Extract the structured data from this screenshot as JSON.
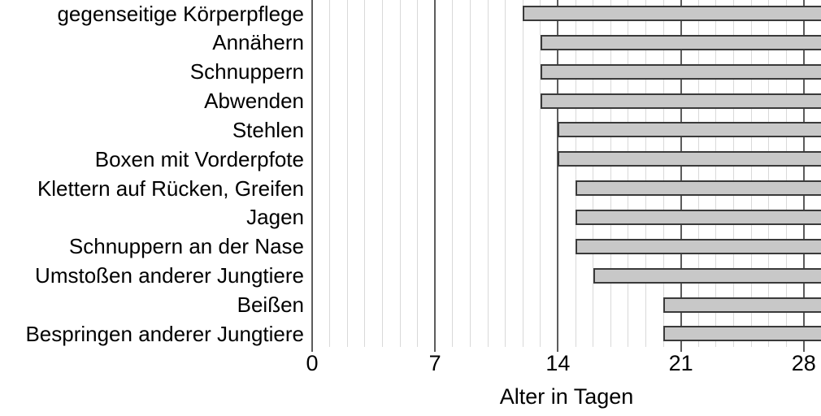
{
  "chart_data": {
    "type": "bar",
    "orientation": "horizontal",
    "title": "",
    "xlabel": "Alter in Tagen",
    "ylabel": "",
    "xlim": [
      0,
      29
    ],
    "xticks": [
      0,
      7,
      14,
      21,
      28
    ],
    "grid": {
      "minor_step_days": 1,
      "major_step_days": 7,
      "grid_on": true
    },
    "legend": false,
    "bars_clipped_at_right_edge": true,
    "bars": [
      {
        "label": "gegenseitige Körperpflege",
        "start_day": 12,
        "end_day": 29
      },
      {
        "label": "Annähern",
        "start_day": 13,
        "end_day": 29
      },
      {
        "label": "Schnuppern",
        "start_day": 13,
        "end_day": 29
      },
      {
        "label": "Abwenden",
        "start_day": 13,
        "end_day": 29
      },
      {
        "label": "Stehlen",
        "start_day": 14,
        "end_day": 29
      },
      {
        "label": "Boxen mit Vorderpfote",
        "start_day": 14,
        "end_day": 29
      },
      {
        "label": "Klettern auf Rücken, Greifen",
        "start_day": 15,
        "end_day": 29
      },
      {
        "label": "Jagen",
        "start_day": 15,
        "end_day": 29
      },
      {
        "label": "Schnuppern an der Nase",
        "start_day": 15,
        "end_day": 29
      },
      {
        "label": "Umstoßen anderer Jungtiere",
        "start_day": 16,
        "end_day": 29
      },
      {
        "label": "Beißen",
        "start_day": 20,
        "end_day": 29
      },
      {
        "label": "Bespringen anderer Jungtiere",
        "start_day": 20,
        "end_day": 29
      }
    ],
    "colors": {
      "bar_fill": "#c8c8c8",
      "bar_border": "#3a3a3a",
      "minor_grid": "#d9d9d9",
      "major_grid": "#5c5c5c",
      "text": "#000000",
      "background": "#ffffff"
    }
  }
}
